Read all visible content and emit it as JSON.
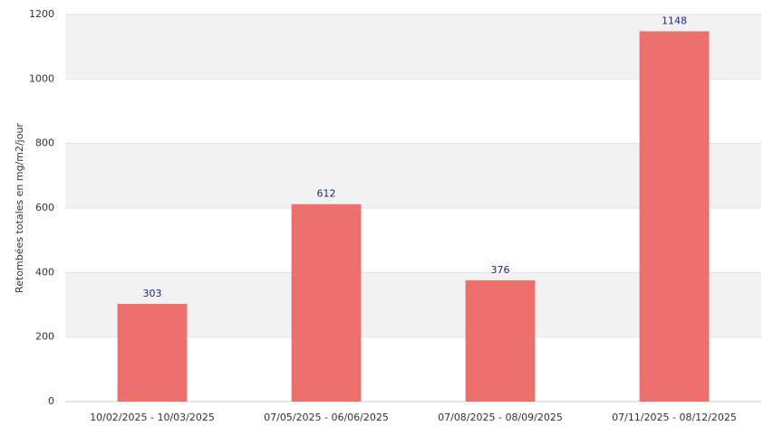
{
  "chart_data": {
    "type": "bar",
    "y_label": "Retombées totales en mg/m2/jour",
    "categories": [
      "10/02/2025 - 10/03/2025",
      "07/05/2025 - 06/06/2025",
      "07/08/2025 - 08/09/2025",
      "07/11/2025 - 08/12/2025"
    ],
    "values": [
      303,
      612,
      376,
      1148
    ],
    "color": "#ee706d",
    "label_color": "#1f2a7a",
    "ylim": [
      0,
      1200
    ],
    "yticks": [
      0,
      200,
      400,
      600,
      800,
      1000,
      1200
    ],
    "grid": true
  }
}
